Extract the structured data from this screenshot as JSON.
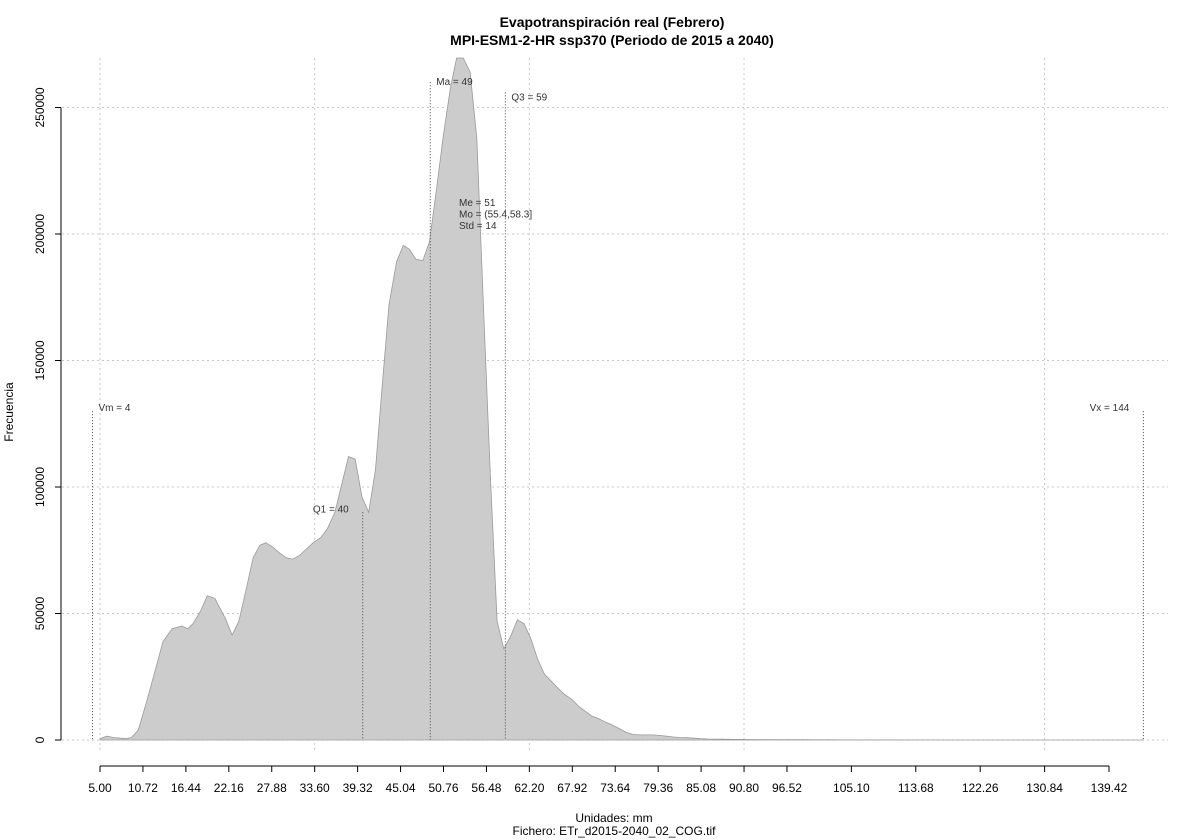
{
  "chart_data": {
    "type": "area",
    "title": "Evapotranspiración real (Febrero)",
    "subtitle": "MPI-ESM1-2-HR ssp370 (Periodo de 2015 a 2040)",
    "xlabel": "Unidades: mm",
    "caption": "Fichero: ETr_d2015-2040_02_COG.tif",
    "ylabel": "Frecuencia",
    "xlim": [
      4,
      144
    ],
    "ylim": [
      0,
      270000
    ],
    "x_ticks": [
      5.0,
      10.72,
      16.44,
      22.16,
      27.88,
      33.6,
      39.32,
      45.04,
      50.76,
      56.48,
      62.2,
      67.92,
      73.64,
      79.36,
      85.08,
      90.8,
      96.52,
      105.1,
      113.68,
      122.26,
      130.84,
      139.42
    ],
    "x_tick_labels": [
      "5.00",
      "10.72",
      "16.44",
      "22.16",
      "27.88",
      "33.60",
      "39.32",
      "45.04",
      "50.76",
      "56.48",
      "62.20",
      "67.92",
      "73.64",
      "79.36",
      "85.08",
      "90.80",
      "96.52",
      "105.10",
      "113.68",
      "122.26",
      "130.84",
      "139.42"
    ],
    "y_ticks": [
      0,
      50000,
      100000,
      150000,
      200000,
      250000
    ],
    "y_tick_labels": [
      "0",
      "50000",
      "100000",
      "150000",
      "200000",
      "250000"
    ],
    "grid": true,
    "x": [
      5.0,
      5.9,
      6.8,
      8.4,
      9.2,
      10.1,
      11.2,
      12.3,
      13.4,
      14.6,
      15.9,
      16.7,
      17.4,
      18.4,
      19.3,
      20.3,
      21.7,
      22.6,
      23.5,
      24.5,
      25.4,
      26.3,
      27.1,
      27.9,
      28.9,
      29.8,
      30.7,
      31.6,
      32.5,
      33.4,
      34.4,
      35.3,
      36.3,
      37.2,
      38.1,
      39.0,
      39.9,
      40.8,
      41.7,
      42.6,
      43.5,
      44.5,
      45.4,
      46.2,
      47.1,
      48.0,
      48.9,
      49.8,
      50.7,
      51.7,
      52.5,
      53.4,
      54.3,
      55.2,
      56.1,
      57.0,
      57.9,
      58.8,
      59.7,
      60.6,
      61.5,
      62.4,
      63.3,
      64.2,
      65.2,
      66.0,
      66.9,
      67.9,
      68.7,
      69.6,
      70.5,
      71.4,
      72.4,
      73.2,
      74.2,
      75.1,
      76.0,
      76.9,
      77.8,
      78.7,
      79.5,
      80.5,
      81.4,
      82.3,
      83.2,
      84.2,
      85.0,
      86.0,
      87.9,
      89.6,
      91.4,
      93.2,
      95.0,
      96.8,
      98.6,
      100.4,
      102.2,
      104.0,
      120.0,
      144.0
    ],
    "values": [
      500,
      1500,
      1000,
      500,
      1000,
      4000,
      15000,
      27000,
      39000,
      44000,
      45000,
      44000,
      46000,
      51000,
      57000,
      56000,
      48000,
      41500,
      47000,
      60000,
      72000,
      77000,
      78000,
      76500,
      74000,
      72000,
      71500,
      73000,
      75500,
      78000,
      80000,
      83500,
      90000,
      101000,
      112000,
      111000,
      96000,
      90000,
      107000,
      140000,
      172000,
      189000,
      195500,
      194000,
      190000,
      189500,
      197000,
      217000,
      238000,
      258000,
      270000,
      271000,
      264000,
      238000,
      170000,
      105000,
      47000,
      36000,
      41000,
      47500,
      46000,
      40000,
      32000,
      26000,
      23000,
      20500,
      18000,
      16000,
      13500,
      11500,
      9500,
      8500,
      7000,
      6000,
      4500,
      3000,
      2200,
      2000,
      2000,
      2000,
      1800,
      1500,
      1200,
      1000,
      900,
      700,
      500,
      400,
      300,
      250,
      200,
      150,
      120,
      100,
      100,
      80,
      60,
      50,
      0,
      0
    ],
    "annotations": [
      {
        "id": "vm",
        "label": "Vm = 4",
        "x": 4,
        "top": 130000,
        "label_side": "right"
      },
      {
        "id": "q1",
        "label": "Q1 = 40",
        "x": 40,
        "top": 90000,
        "label_side": "left"
      },
      {
        "id": "ma",
        "label": "Ma = 49",
        "x": 49,
        "top": 260000,
        "label_side": "right"
      },
      {
        "id": "q3",
        "label": "Q3 = 59",
        "x": 59,
        "top": 256000,
        "label_side": "right"
      },
      {
        "id": "vx",
        "label": "Vx = 144",
        "x": 144,
        "top": 130000,
        "label_side": "left"
      }
    ],
    "stats": [
      "Me = 51",
      "Mo = (55.4,58.3]",
      "Std = 14"
    ]
  }
}
